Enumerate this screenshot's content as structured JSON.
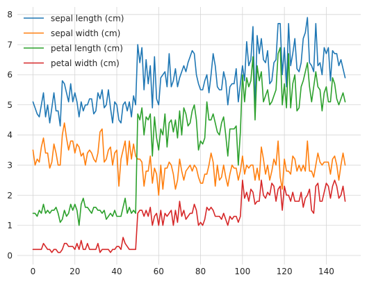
{
  "chart_data": {
    "type": "line",
    "title": "",
    "xlabel": "",
    "ylabel": "",
    "xlim": [
      -7.45,
      156.45
    ],
    "ylim": [
      -0.3,
      8.25
    ],
    "xticks": [
      0,
      20,
      40,
      60,
      80,
      100,
      120,
      140
    ],
    "yticks": [
      0,
      1,
      2,
      3,
      4,
      5,
      6,
      7,
      8
    ],
    "grid": true,
    "legend_position": "top-left",
    "series": [
      {
        "name": "sepal length (cm)",
        "color": "#1f77b4",
        "values": [
          5.1,
          4.9,
          4.7,
          4.6,
          5.0,
          5.4,
          4.6,
          5.0,
          4.4,
          4.9,
          5.4,
          4.8,
          4.8,
          4.3,
          5.8,
          5.7,
          5.4,
          5.1,
          5.7,
          5.1,
          5.4,
          5.1,
          4.6,
          5.1,
          4.8,
          5.0,
          5.0,
          5.2,
          5.2,
          4.7,
          4.8,
          5.4,
          5.2,
          5.5,
          4.9,
          5.0,
          5.5,
          4.9,
          4.4,
          5.1,
          5.0,
          4.5,
          4.4,
          5.0,
          5.1,
          4.8,
          5.1,
          4.6,
          5.3,
          5.0,
          7.0,
          6.4,
          6.9,
          5.5,
          6.5,
          5.7,
          6.3,
          4.9,
          6.6,
          5.2,
          5.0,
          5.9,
          6.0,
          6.1,
          5.6,
          6.7,
          5.6,
          5.8,
          6.2,
          5.6,
          5.9,
          6.1,
          6.3,
          6.1,
          6.4,
          6.6,
          6.8,
          6.7,
          6.0,
          5.7,
          5.5,
          5.5,
          5.8,
          6.0,
          5.4,
          6.0,
          6.7,
          6.3,
          5.6,
          5.5,
          5.5,
          6.1,
          5.8,
          5.0,
          5.6,
          5.7,
          5.7,
          6.2,
          5.1,
          5.7,
          6.3,
          5.8,
          7.1,
          6.3,
          6.5,
          7.6,
          4.9,
          7.3,
          6.7,
          7.2,
          6.5,
          6.4,
          6.8,
          5.7,
          5.8,
          6.4,
          6.5,
          7.7,
          7.7,
          6.0,
          6.9,
          5.6,
          7.7,
          6.3,
          6.7,
          7.2,
          6.2,
          6.1,
          6.4,
          7.2,
          7.4,
          7.9,
          6.4,
          6.3,
          6.1,
          7.7,
          6.3,
          6.4,
          6.0,
          6.9,
          6.7,
          6.9,
          5.8,
          6.8,
          6.7,
          6.7,
          6.3,
          6.5,
          6.2,
          5.9
        ]
      },
      {
        "name": "sepal width (cm)",
        "color": "#ff7f0e",
        "values": [
          3.5,
          3.0,
          3.2,
          3.1,
          3.6,
          3.9,
          3.4,
          3.4,
          2.9,
          3.1,
          3.7,
          3.4,
          3.0,
          3.0,
          4.0,
          4.4,
          3.9,
          3.5,
          3.8,
          3.8,
          3.4,
          3.7,
          3.6,
          3.3,
          3.4,
          3.0,
          3.4,
          3.5,
          3.4,
          3.2,
          3.1,
          3.4,
          4.1,
          4.2,
          3.1,
          3.2,
          3.5,
          3.6,
          3.0,
          3.4,
          3.5,
          2.3,
          3.2,
          3.5,
          3.8,
          3.0,
          3.8,
          3.2,
          3.7,
          3.3,
          3.2,
          3.2,
          3.1,
          2.3,
          2.8,
          2.8,
          3.3,
          2.4,
          2.9,
          2.7,
          2.0,
          3.0,
          2.2,
          2.9,
          2.9,
          3.1,
          3.0,
          2.7,
          2.2,
          2.5,
          3.2,
          2.8,
          2.5,
          2.8,
          2.9,
          3.0,
          2.8,
          3.0,
          2.9,
          2.6,
          2.4,
          2.4,
          2.7,
          2.7,
          3.0,
          3.4,
          3.1,
          2.3,
          3.0,
          2.5,
          2.6,
          3.0,
          2.6,
          2.3,
          2.7,
          3.0,
          2.9,
          2.9,
          2.5,
          2.8,
          3.3,
          2.7,
          3.0,
          2.9,
          3.0,
          3.0,
          2.5,
          2.9,
          2.5,
          3.6,
          3.2,
          2.7,
          3.0,
          2.5,
          2.8,
          3.2,
          3.0,
          3.8,
          2.6,
          2.2,
          3.2,
          2.8,
          2.8,
          2.7,
          3.3,
          3.2,
          2.8,
          3.0,
          2.8,
          3.0,
          2.8,
          3.8,
          2.8,
          2.8,
          2.6,
          3.0,
          3.4,
          3.1,
          3.0,
          3.1,
          3.1,
          3.1,
          2.7,
          3.2,
          3.3,
          3.0,
          2.5,
          3.0,
          3.4,
          3.0
        ]
      },
      {
        "name": "petal length (cm)",
        "color": "#2ca02c",
        "values": [
          1.4,
          1.4,
          1.3,
          1.5,
          1.4,
          1.7,
          1.4,
          1.5,
          1.4,
          1.5,
          1.5,
          1.6,
          1.4,
          1.1,
          1.2,
          1.5,
          1.3,
          1.4,
          1.7,
          1.5,
          1.7,
          1.5,
          1.0,
          1.7,
          1.9,
          1.6,
          1.6,
          1.5,
          1.4,
          1.6,
          1.6,
          1.5,
          1.5,
          1.4,
          1.5,
          1.2,
          1.3,
          1.4,
          1.3,
          1.5,
          1.3,
          1.3,
          1.3,
          1.6,
          1.9,
          1.4,
          1.6,
          1.4,
          1.5,
          1.4,
          4.7,
          4.5,
          4.9,
          4.0,
          4.6,
          4.5,
          4.7,
          3.3,
          4.6,
          3.9,
          3.5,
          4.2,
          4.0,
          4.7,
          3.6,
          4.4,
          4.5,
          4.1,
          4.5,
          3.9,
          4.8,
          4.0,
          4.9,
          4.7,
          4.3,
          4.4,
          4.8,
          5.0,
          4.5,
          3.5,
          3.8,
          3.7,
          3.9,
          5.1,
          4.5,
          4.5,
          4.7,
          4.4,
          4.1,
          4.0,
          4.4,
          4.6,
          4.0,
          3.3,
          4.2,
          4.2,
          4.2,
          4.3,
          3.0,
          4.1,
          6.0,
          5.1,
          5.9,
          5.6,
          5.8,
          6.6,
          4.5,
          6.3,
          5.8,
          6.1,
          5.1,
          5.3,
          5.5,
          5.0,
          5.1,
          5.3,
          5.5,
          6.7,
          6.9,
          5.0,
          5.7,
          4.9,
          6.7,
          4.9,
          5.7,
          6.0,
          4.8,
          4.9,
          5.6,
          5.8,
          6.1,
          6.4,
          5.6,
          5.1,
          5.6,
          6.1,
          5.6,
          5.5,
          4.8,
          5.4,
          5.6,
          5.1,
          5.1,
          5.9,
          5.7,
          5.2,
          5.0,
          5.2,
          5.4,
          5.1
        ]
      },
      {
        "name": "petal width (cm)",
        "color": "#d62728",
        "values": [
          0.2,
          0.2,
          0.2,
          0.2,
          0.2,
          0.4,
          0.3,
          0.2,
          0.2,
          0.1,
          0.2,
          0.2,
          0.1,
          0.1,
          0.2,
          0.4,
          0.4,
          0.3,
          0.3,
          0.3,
          0.2,
          0.4,
          0.2,
          0.5,
          0.2,
          0.2,
          0.4,
          0.2,
          0.2,
          0.2,
          0.2,
          0.4,
          0.1,
          0.2,
          0.2,
          0.2,
          0.2,
          0.1,
          0.2,
          0.2,
          0.3,
          0.3,
          0.2,
          0.6,
          0.4,
          0.3,
          0.2,
          0.2,
          0.2,
          0.2,
          1.4,
          1.5,
          1.5,
          1.3,
          1.5,
          1.3,
          1.6,
          1.0,
          1.3,
          1.4,
          1.0,
          1.5,
          1.0,
          1.4,
          1.3,
          1.4,
          1.5,
          1.0,
          1.5,
          1.1,
          1.8,
          1.3,
          1.5,
          1.2,
          1.3,
          1.4,
          1.4,
          1.7,
          1.5,
          1.0,
          1.1,
          1.0,
          1.2,
          1.6,
          1.5,
          1.6,
          1.5,
          1.3,
          1.3,
          1.3,
          1.2,
          1.4,
          1.2,
          1.0,
          1.3,
          1.2,
          1.3,
          1.3,
          1.1,
          1.3,
          2.5,
          1.9,
          2.1,
          1.8,
          2.2,
          2.1,
          1.7,
          1.8,
          1.8,
          2.5,
          2.0,
          1.9,
          2.1,
          2.0,
          2.4,
          2.3,
          1.8,
          2.2,
          2.3,
          1.5,
          2.3,
          2.0,
          2.0,
          1.8,
          2.1,
          1.8,
          1.8,
          1.8,
          2.1,
          1.6,
          1.9,
          2.0,
          2.2,
          1.5,
          1.4,
          2.3,
          2.4,
          1.8,
          1.8,
          2.1,
          2.4,
          2.3,
          1.9,
          2.3,
          2.5,
          2.3,
          1.9,
          2.0,
          2.3,
          1.8
        ]
      }
    ]
  }
}
